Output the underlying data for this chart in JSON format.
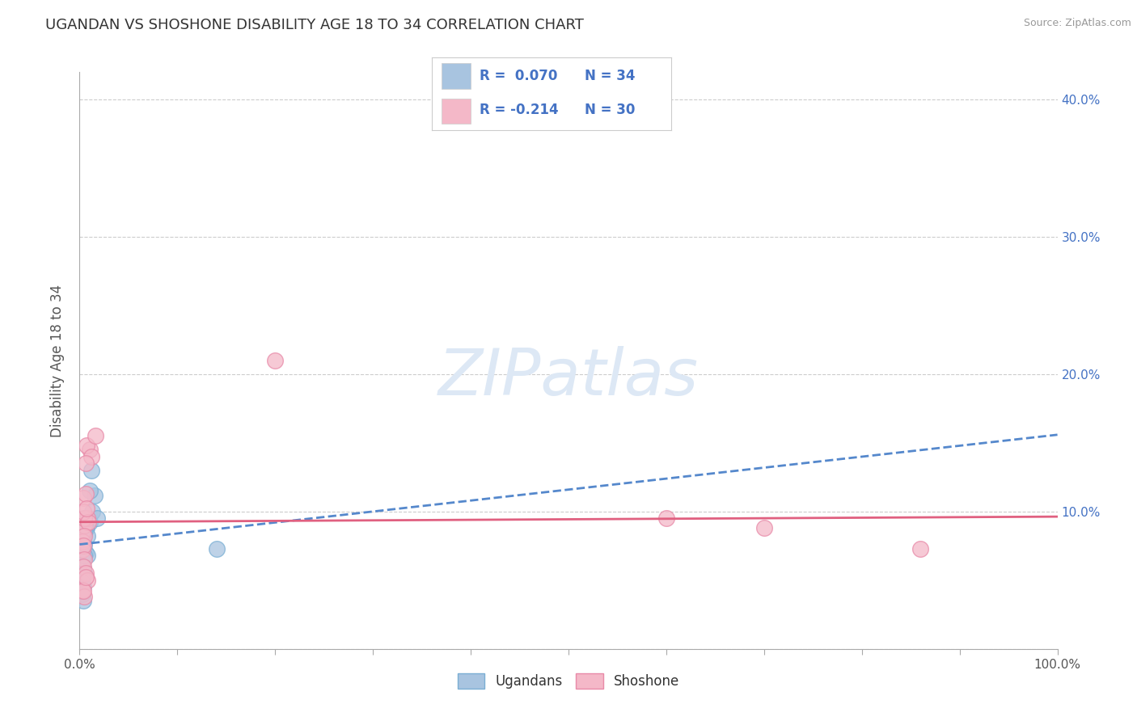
{
  "title": "UGANDAN VS SHOSHONE DISABILITY AGE 18 TO 34 CORRELATION CHART",
  "source": "Source: ZipAtlas.com",
  "ylabel": "Disability Age 18 to 34",
  "xlim": [
    0.0,
    1.0
  ],
  "ylim": [
    0.0,
    0.42
  ],
  "xticks": [
    0.0,
    0.1,
    0.2,
    0.3,
    0.4,
    0.5,
    0.6,
    0.7,
    0.8,
    0.9,
    1.0
  ],
  "xtick_labels": [
    "0.0%",
    "",
    "",
    "",
    "",
    "",
    "",
    "",
    "",
    "",
    "100.0%"
  ],
  "yticks": [
    0.0,
    0.1,
    0.2,
    0.3,
    0.4
  ],
  "ytick_labels_right": [
    "",
    "10.0%",
    "20.0%",
    "30.0%",
    "40.0%"
  ],
  "ugandan_R": 0.07,
  "ugandan_N": 34,
  "shoshone_R": -0.214,
  "shoshone_N": 30,
  "ugandan_color": "#a8c4e0",
  "ugandan_edge": "#7bafd4",
  "shoshone_color": "#f4b8c8",
  "shoshone_edge": "#e88aa8",
  "ugandan_line_color": "#5588cc",
  "shoshone_line_color": "#e06080",
  "background_color": "#ffffff",
  "grid_color": "#cccccc",
  "legend_text_color": "#4472c4",
  "ugandan_x": [
    0.005,
    0.008,
    0.005,
    0.003,
    0.007,
    0.01,
    0.006,
    0.004,
    0.002,
    0.008,
    0.012,
    0.015,
    0.003,
    0.005,
    0.004,
    0.006,
    0.008,
    0.01,
    0.007,
    0.003,
    0.002,
    0.004,
    0.005,
    0.013,
    0.018,
    0.002,
    0.003,
    0.004,
    0.003,
    0.005,
    0.004,
    0.005,
    0.14,
    0.002
  ],
  "ugandan_y": [
    0.095,
    0.095,
    0.085,
    0.09,
    0.088,
    0.092,
    0.087,
    0.083,
    0.08,
    0.082,
    0.13,
    0.112,
    0.078,
    0.076,
    0.072,
    0.07,
    0.068,
    0.115,
    0.095,
    0.065,
    0.06,
    0.058,
    0.055,
    0.1,
    0.095,
    0.052,
    0.048,
    0.045,
    0.04,
    0.085,
    0.035,
    0.068,
    0.073,
    0.042
  ],
  "shoshone_x": [
    0.003,
    0.005,
    0.004,
    0.006,
    0.008,
    0.01,
    0.007,
    0.012,
    0.003,
    0.005,
    0.004,
    0.006,
    0.016,
    0.009,
    0.007,
    0.003,
    0.005,
    0.004,
    0.005,
    0.004,
    0.006,
    0.008,
    0.003,
    0.005,
    0.004,
    0.006,
    0.2,
    0.6,
    0.7,
    0.86
  ],
  "shoshone_y": [
    0.085,
    0.09,
    0.11,
    0.113,
    0.095,
    0.145,
    0.148,
    0.14,
    0.078,
    0.095,
    0.1,
    0.135,
    0.155,
    0.092,
    0.102,
    0.072,
    0.082,
    0.075,
    0.065,
    0.06,
    0.055,
    0.05,
    0.043,
    0.038,
    0.042,
    0.052,
    0.21,
    0.095,
    0.088,
    0.073
  ]
}
